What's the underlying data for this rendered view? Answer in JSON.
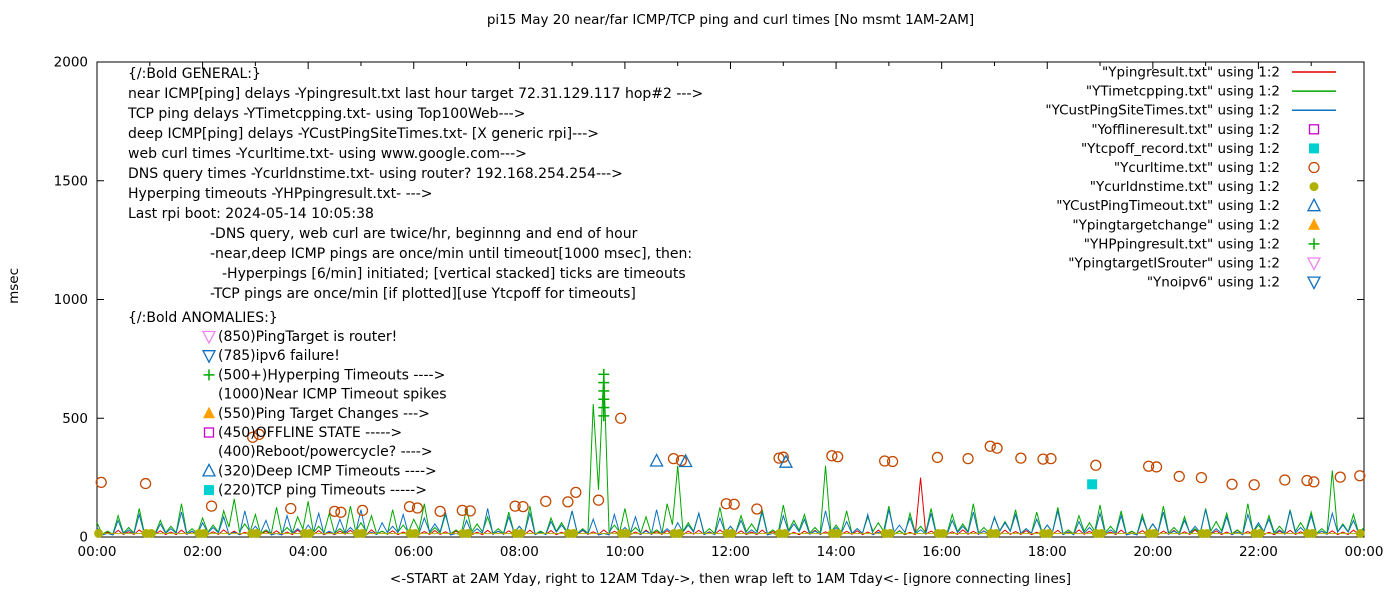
{
  "chart_data": {
    "type": "line+scatter",
    "title": "pi15 May 20  near/far ICMP/TCP ping and curl times [No msmt 1AM-2AM]",
    "xlabel": "<-START at 2AM Yday, right to 12AM Tday->, then wrap left to 1AM Tday<- [ignore connecting lines]",
    "ylabel": "msec",
    "xlim": [
      0,
      24
    ],
    "ylim": [
      0,
      2000
    ],
    "yticks": [
      0,
      500,
      1000,
      1500,
      2000
    ],
    "xticks": [
      {
        "h": 0,
        "label": "00:00"
      },
      {
        "h": 2,
        "label": "02:00"
      },
      {
        "h": 4,
        "label": "04:00"
      },
      {
        "h": 6,
        "label": "06:00"
      },
      {
        "h": 8,
        "label": "08:00"
      },
      {
        "h": 10,
        "label": "10:00"
      },
      {
        "h": 12,
        "label": "12:00"
      },
      {
        "h": 14,
        "label": "14:00"
      },
      {
        "h": 16,
        "label": "16:00"
      },
      {
        "h": 18,
        "label": "18:00"
      },
      {
        "h": 20,
        "label": "20:00"
      },
      {
        "h": 22,
        "label": "22:00"
      },
      {
        "h": 24,
        "label": "00:00"
      }
    ],
    "legend_position": "top-right-inside",
    "grid": false,
    "series": [
      {
        "name": "Ypingresult",
        "legend_label": "\"Ypingresult.txt\" using 1:2",
        "type": "line",
        "color": "#e00000",
        "marker": "line",
        "x0": 0,
        "xstep": 0.2,
        "values": [
          25,
          20,
          28,
          22,
          30,
          24,
          26,
          21,
          29,
          23,
          27,
          22,
          30,
          25,
          20,
          28,
          24,
          26,
          21,
          29,
          23,
          27,
          20,
          25,
          28,
          22,
          30,
          24,
          26,
          21,
          29,
          23,
          27,
          22,
          25,
          30,
          20,
          28,
          24,
          26,
          21,
          29,
          23,
          27,
          20,
          25,
          28,
          22,
          30,
          24,
          26,
          21,
          29,
          23,
          27,
          20,
          25,
          28,
          22,
          30,
          24,
          26,
          21,
          29,
          23,
          27,
          20,
          25,
          28,
          22,
          30,
          24,
          26,
          21,
          29,
          23,
          27,
          20,
          250,
          25,
          28,
          22,
          30,
          24,
          26,
          21,
          29,
          23,
          27,
          20,
          25,
          28,
          22,
          30,
          24,
          26,
          21,
          29,
          23,
          27,
          20,
          25,
          28,
          22,
          30,
          24,
          26,
          21,
          29,
          23,
          27,
          20,
          25,
          28,
          22,
          30,
          24,
          26,
          21,
          29,
          23
        ]
      },
      {
        "name": "YTimetcpping",
        "legend_label": "\"YTimetcpping.txt\" using 1:2",
        "type": "line",
        "color": "#00a800",
        "marker": "line",
        "x0": 0,
        "xstep": 0.2,
        "values": [
          60,
          25,
          90,
          40,
          120,
          30,
          70,
          45,
          140,
          35,
          80,
          50,
          110,
          160,
          55,
          95,
          30,
          125,
          40,
          85,
          150,
          45,
          100,
          35,
          130,
          60,
          90,
          25,
          115,
          50,
          75,
          140,
          40,
          95,
          30,
          120,
          55,
          85,
          35,
          105,
          45,
          130,
          25,
          80,
          60,
          110,
          35,
          560,
          700,
          50,
          120,
          40,
          85,
          30,
          140,
          300,
          60,
          100,
          35,
          125,
          45,
          90,
          55,
          115,
          30,
          135,
          70,
          95,
          40,
          300,
          50,
          110,
          35,
          85,
          60,
          130,
          25,
          100,
          45,
          120,
          30,
          95,
          55,
          140,
          40,
          80,
          65,
          115,
          35,
          105,
          50,
          125,
          30,
          90,
          60,
          135,
          45,
          110,
          25,
          95,
          55,
          130,
          40,
          85,
          35,
          120,
          65,
          100,
          30,
          140,
          50,
          90,
          45,
          115,
          60,
          105,
          35,
          280,
          55,
          95,
          40
        ]
      },
      {
        "name": "YCustPingSiteTimes",
        "legend_label": "\"YCustPingSiteTimes.txt\" using 1:2",
        "type": "line",
        "color": "#0e70c0",
        "marker": "line",
        "x0": 0,
        "xstep": 0.2,
        "values": [
          40,
          15,
          70,
          30,
          95,
          20,
          55,
          35,
          105,
          25,
          60,
          40,
          85,
          20,
          110,
          45,
          70,
          15,
          90,
          35,
          50,
          100,
          25,
          75,
          40,
          115,
          20,
          60,
          45,
          95,
          30,
          80,
          55,
          105,
          15,
          70,
          35,
          120,
          25,
          85,
          45,
          100,
          20,
          65,
          50,
          110,
          30,
          75,
          15,
          95,
          40,
          85,
          25,
          115,
          35,
          60,
          50,
          100,
          20,
          80,
          45,
          70,
          30,
          105,
          15,
          90,
          55,
          75,
          25,
          110,
          40,
          65,
          35,
          95,
          20,
          115,
          50,
          80,
          30,
          100,
          15,
          70,
          45,
          105,
          25,
          85,
          60,
          95,
          35,
          75,
          50,
          110,
          20,
          65,
          40,
          100,
          30,
          90,
          15,
          80,
          55,
          105,
          25,
          70,
          45,
          115,
          35,
          85,
          20,
          95,
          60,
          75,
          30,
          110,
          40,
          90,
          25,
          100,
          50,
          70,
          35
        ]
      },
      {
        "name": "Yofflineresult",
        "legend_label": "\"Yofflineresult.txt\" using 1:2",
        "type": "scatter",
        "color": "#cc00cc",
        "marker": "square-open",
        "points": []
      },
      {
        "name": "Ytcpoff_record",
        "legend_label": "\"Ytcpoff_record.txt\" using 1:2",
        "type": "scatter",
        "color": "#00d0d0",
        "marker": "square-filled",
        "points": [
          [
            18.85,
            222
          ]
        ]
      },
      {
        "name": "Ycurltime",
        "legend_label": "\"Ycurltime.txt\" using 1:2",
        "type": "scatter",
        "color": "#c04800",
        "marker": "circle-open",
        "points": [
          [
            0.08,
            230
          ],
          [
            0.92,
            225
          ],
          [
            2.17,
            130
          ],
          [
            2.95,
            420
          ],
          [
            3.07,
            432
          ],
          [
            3.67,
            120
          ],
          [
            4.5,
            108
          ],
          [
            4.62,
            104
          ],
          [
            5.03,
            112
          ],
          [
            5.92,
            128
          ],
          [
            6.07,
            122
          ],
          [
            6.5,
            108
          ],
          [
            6.92,
            112
          ],
          [
            7.07,
            110
          ],
          [
            7.92,
            130
          ],
          [
            8.07,
            128
          ],
          [
            8.5,
            150
          ],
          [
            8.92,
            148
          ],
          [
            9.07,
            188
          ],
          [
            9.5,
            155
          ],
          [
            9.92,
            500
          ],
          [
            10.92,
            330
          ],
          [
            11.07,
            322
          ],
          [
            11.92,
            140
          ],
          [
            12.07,
            138
          ],
          [
            12.5,
            118
          ],
          [
            12.92,
            332
          ],
          [
            13.0,
            336
          ],
          [
            13.92,
            342
          ],
          [
            14.03,
            338
          ],
          [
            14.92,
            320
          ],
          [
            15.07,
            318
          ],
          [
            15.92,
            335
          ],
          [
            16.5,
            330
          ],
          [
            16.92,
            382
          ],
          [
            17.05,
            374
          ],
          [
            17.5,
            332
          ],
          [
            17.92,
            328
          ],
          [
            18.07,
            330
          ],
          [
            18.92,
            302
          ],
          [
            19.92,
            298
          ],
          [
            20.07,
            295
          ],
          [
            20.5,
            255
          ],
          [
            20.92,
            250
          ],
          [
            21.5,
            222
          ],
          [
            21.92,
            220
          ],
          [
            22.5,
            240
          ],
          [
            22.92,
            238
          ],
          [
            23.05,
            232
          ],
          [
            23.55,
            252
          ],
          [
            23.92,
            258
          ]
        ]
      },
      {
        "name": "Ycurldnstime",
        "legend_label": "\"Ycurldnstime.txt\" using 1:2",
        "type": "scatter",
        "color": "#b0b000",
        "marker": "circle-filled",
        "connect": true,
        "points": [
          [
            0.03,
            15
          ],
          [
            0.93,
            15
          ],
          [
            1.03,
            15
          ],
          [
            1.93,
            15
          ],
          [
            2.03,
            15
          ],
          [
            2.93,
            15
          ],
          [
            3.03,
            15
          ],
          [
            3.93,
            15
          ],
          [
            4.03,
            15
          ],
          [
            4.93,
            15
          ],
          [
            5.03,
            15
          ],
          [
            5.93,
            15
          ],
          [
            6.03,
            15
          ],
          [
            6.93,
            15
          ],
          [
            7.03,
            15
          ],
          [
            7.93,
            15
          ],
          [
            8.03,
            15
          ],
          [
            8.93,
            15
          ],
          [
            9.03,
            15
          ],
          [
            9.93,
            15
          ],
          [
            10.03,
            15
          ],
          [
            10.93,
            15
          ],
          [
            11.03,
            15
          ],
          [
            11.93,
            15
          ],
          [
            12.03,
            15
          ],
          [
            12.93,
            15
          ],
          [
            13.03,
            15
          ],
          [
            13.93,
            15
          ],
          [
            14.03,
            15
          ],
          [
            14.93,
            15
          ],
          [
            15.03,
            15
          ],
          [
            15.93,
            15
          ],
          [
            16.03,
            15
          ],
          [
            16.93,
            15
          ],
          [
            17.03,
            15
          ],
          [
            17.93,
            15
          ],
          [
            18.03,
            15
          ],
          [
            18.93,
            15
          ],
          [
            19.03,
            15
          ],
          [
            19.93,
            15
          ],
          [
            20.03,
            15
          ],
          [
            20.93,
            15
          ],
          [
            21.03,
            15
          ],
          [
            21.93,
            15
          ],
          [
            22.03,
            15
          ],
          [
            22.93,
            15
          ],
          [
            23.03,
            15
          ],
          [
            23.93,
            15
          ]
        ]
      },
      {
        "name": "YCustPingTimeout",
        "legend_label": "\"YCustPingTimeout.txt\" using 1:2",
        "type": "scatter",
        "color": "#0e70c0",
        "marker": "triangle-up-open",
        "points": [
          [
            10.6,
            320
          ],
          [
            11.15,
            318
          ],
          [
            13.05,
            315
          ]
        ]
      },
      {
        "name": "Ypingtargetchange",
        "legend_label": "\"Ypingtargetchange\" using 1:2",
        "type": "scatter",
        "color": "#ffa000",
        "marker": "triangle-up-filled",
        "points": []
      },
      {
        "name": "YHPpingresult",
        "legend_label": "\"YHPpingresult.txt\" using 1:2",
        "type": "scatter",
        "color": "#00a800",
        "marker": "plus",
        "points": [
          [
            9.6,
            510
          ],
          [
            9.6,
            545
          ],
          [
            9.6,
            580
          ],
          [
            9.6,
            615
          ],
          [
            9.6,
            650
          ],
          [
            9.6,
            685
          ]
        ]
      },
      {
        "name": "YpingtargetISrouter",
        "legend_label": "\"YpingtargetISrouter\" using 1:2",
        "type": "scatter",
        "color": "#ee82ee",
        "marker": "triangle-down-open",
        "points": []
      },
      {
        "name": "Ynoipv6",
        "legend_label": "\"Ynoipv6\" using 1:2",
        "type": "scatter",
        "color": "#0e70c0",
        "marker": "triangle-down-open",
        "points": []
      }
    ],
    "annotations": {
      "general": {
        "lines": [
          {
            "text": "{/:Bold GENERAL:}",
            "indent": 0
          },
          {
            "text": "near ICMP[ping] delays -Ypingresult.txt last hour target 72.31.129.117 hop#2 --->",
            "indent": 0
          },
          {
            "text": "TCP ping delays -YTimetcpping.txt- using Top100Web--->",
            "indent": 0
          },
          {
            "text": "deep ICMP[ping] delays -YCustPingSiteTimes.txt- [X generic rpi]--->",
            "indent": 0
          },
          {
            "text": "web curl times -Ycurltime.txt- using www.google.com--->",
            "indent": 0
          },
          {
            "text": "DNS query times -Ycurldnstime.txt- using router? 192.168.254.254--->",
            "indent": 0
          },
          {
            "text": "Hyperping timeouts -YHPpingresult.txt- --->",
            "indent": 0
          },
          {
            "text": "Last rpi boot: 2024-05-14 10:05:38",
            "indent": 0
          },
          {
            "text": "-DNS query, web curl are twice/hr, beginnng and end of hour",
            "indent": 1
          },
          {
            "text": "-near,deep ICMP pings are once/min until timeout[1000 msec], then:",
            "indent": 1
          },
          {
            "text": "-Hyperpings [6/min] initiated; [vertical stacked] ticks are timeouts",
            "indent": 2
          },
          {
            "text": "-TCP pings are once/min [if plotted][use Ytcpoff for timeouts]",
            "indent": 1
          }
        ]
      },
      "anomalies": {
        "header": "{/:Bold ANOMALIES:}",
        "rows": [
          {
            "marker": "triangle-down-open",
            "color": "#ee82ee",
            "text": "(850)PingTarget is router!"
          },
          {
            "marker": "triangle-down-open",
            "color": "#0e70c0",
            "text": "(785)ipv6 failure!"
          },
          {
            "marker": "plus",
            "color": "#00a800",
            "text": "(500+)Hyperping Timeouts ---->"
          },
          {
            "marker": "none",
            "color": "",
            "text": "(1000)Near ICMP Timeout spikes"
          },
          {
            "marker": "triangle-up-filled",
            "color": "#ffa000",
            "text": "(550)Ping Target Changes --->"
          },
          {
            "marker": "square-open",
            "color": "#cc00cc",
            "text": "(450)OFFLINE STATE ----->"
          },
          {
            "marker": "none",
            "color": "",
            "text": "(400)Reboot/powercycle? ---->"
          },
          {
            "marker": "triangle-up-open",
            "color": "#0e70c0",
            "text": "(320)Deep ICMP Timeouts ---->"
          },
          {
            "marker": "square-filled",
            "color": "#00d0d0",
            "text": "(220)TCP ping Timeouts ----->"
          }
        ]
      }
    }
  }
}
